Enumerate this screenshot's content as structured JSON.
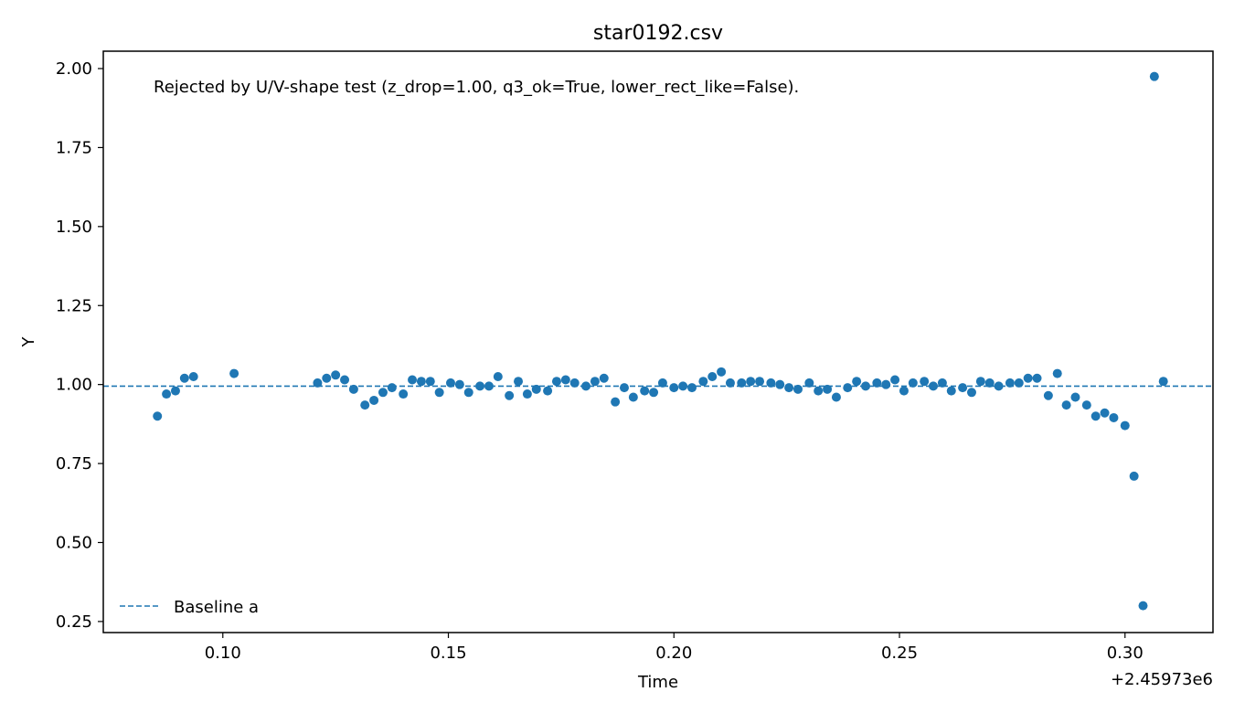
{
  "chart_data": {
    "type": "scatter",
    "title": "star0192.csv",
    "xlabel": "Time",
    "ylabel": "Y",
    "x_offset_label": "+2.45973e6",
    "annotation": "Rejected by U/V-shape test (z_drop=1.00, q3_ok=True, lower_rect_like=False).",
    "xlim": [
      0.0735,
      0.3195
    ],
    "ylim": [
      0.215,
      2.055
    ],
    "x_ticks": [
      0.1,
      0.15,
      0.2,
      0.25,
      0.3
    ],
    "x_tick_labels": [
      "0.10",
      "0.15",
      "0.20",
      "0.25",
      "0.30"
    ],
    "y_ticks": [
      0.25,
      0.5,
      0.75,
      1.0,
      1.25,
      1.5,
      1.75,
      2.0
    ],
    "y_tick_labels": [
      "0.25",
      "0.50",
      "0.75",
      "1.00",
      "1.25",
      "1.50",
      "1.75",
      "2.00"
    ],
    "grid": false,
    "legend_position": "lower-left",
    "baseline": {
      "name": "Baseline a",
      "value": 0.995,
      "color": "#1f77b4",
      "style": "dashed"
    },
    "series": [
      {
        "color": "#1f77b4",
        "x": [
          0.0855,
          0.0875,
          0.0895,
          0.0915,
          0.0935,
          0.1025,
          0.121,
          0.123,
          0.125,
          0.127,
          0.129,
          0.1315,
          0.1335,
          0.1355,
          0.1375,
          0.14,
          0.142,
          0.144,
          0.146,
          0.148,
          0.1505,
          0.1525,
          0.1545,
          0.157,
          0.159,
          0.161,
          0.1635,
          0.1655,
          0.1675,
          0.1695,
          0.172,
          0.174,
          0.176,
          0.178,
          0.1805,
          0.1825,
          0.1845,
          0.187,
          0.189,
          0.191,
          0.1935,
          0.1955,
          0.1975,
          0.2,
          0.202,
          0.204,
          0.2065,
          0.2085,
          0.2105,
          0.2125,
          0.215,
          0.217,
          0.219,
          0.2215,
          0.2235,
          0.2255,
          0.2275,
          0.23,
          0.232,
          0.234,
          0.236,
          0.2385,
          0.2405,
          0.2425,
          0.245,
          0.247,
          0.249,
          0.251,
          0.253,
          0.2555,
          0.2575,
          0.2595,
          0.2615,
          0.264,
          0.266,
          0.268,
          0.27,
          0.272,
          0.2745,
          0.2765,
          0.2785,
          0.2805,
          0.283,
          0.285,
          0.287,
          0.289,
          0.2915,
          0.2935,
          0.2955,
          0.2975,
          0.3,
          0.302,
          0.304,
          0.3065,
          0.3085
        ],
        "y": [
          0.9,
          0.97,
          0.98,
          1.02,
          1.025,
          1.035,
          1.005,
          1.02,
          1.03,
          1.015,
          0.985,
          0.935,
          0.95,
          0.975,
          0.99,
          0.97,
          1.015,
          1.01,
          1.01,
          0.975,
          1.005,
          1.0,
          0.975,
          0.995,
          0.995,
          1.025,
          0.965,
          1.01,
          0.97,
          0.985,
          0.98,
          1.01,
          1.015,
          1.005,
          0.995,
          1.01,
          1.02,
          0.945,
          0.99,
          0.96,
          0.98,
          0.975,
          1.005,
          0.99,
          0.995,
          0.99,
          1.01,
          1.025,
          1.04,
          1.005,
          1.005,
          1.01,
          1.01,
          1.005,
          1.0,
          0.99,
          0.985,
          1.005,
          0.98,
          0.985,
          0.96,
          0.99,
          1.01,
          0.995,
          1.005,
          1.0,
          1.015,
          0.98,
          1.005,
          1.01,
          0.995,
          1.005,
          0.98,
          0.99,
          0.975,
          1.01,
          1.005,
          0.995,
          1.005,
          1.005,
          1.02,
          1.02,
          0.965,
          1.035,
          0.935,
          0.96,
          0.935,
          0.9,
          0.91,
          0.895,
          0.87,
          0.71,
          0.3,
          1.975,
          1.01
        ]
      }
    ]
  }
}
